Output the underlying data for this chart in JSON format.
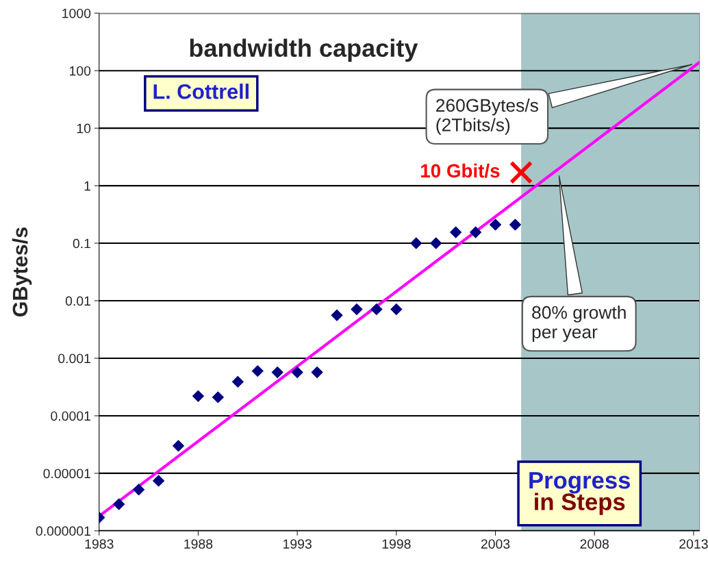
{
  "chart_data": {
    "type": "scatter",
    "title": "bandwidth capacity",
    "ylabel": "GBytes/s",
    "x": [
      1983,
      1984,
      1985,
      1986,
      1987,
      1988,
      1989,
      1990,
      1991,
      1992,
      1993,
      1994,
      1995,
      1996,
      1997,
      1998,
      1999,
      2000,
      2001,
      2002,
      2003,
      2004
    ],
    "series": [
      {
        "color": "#000080",
        "marker": "diamond",
        "values": [
          1.7e-06,
          2.9e-06,
          5.2e-06,
          7.4e-06,
          3e-05,
          0.00022,
          0.00021,
          0.00039,
          0.0006,
          0.00057,
          0.00057,
          0.00057,
          0.0056,
          0.0071,
          0.0071,
          0.0071,
          0.1,
          0.1,
          0.155,
          0.155,
          0.21,
          0.21
        ]
      },
      {
        "type": "line",
        "color": "#ff00ff",
        "x": [
          1983,
          2013.3
        ],
        "values": [
          1.8e-06,
          140
        ]
      },
      {
        "type": "scatter",
        "name": "10 Gbit/s",
        "color": "#ff0000",
        "marker": "cross",
        "x": [
          2004.3
        ],
        "values": [
          1.7
        ]
      }
    ],
    "log": "y",
    "xlim": [
      1983,
      2013.3
    ],
    "xticks": [
      1983,
      1988,
      1993,
      1998,
      2003,
      2008,
      2013
    ],
    "ylim": [
      1e-06,
      1000
    ],
    "yticks": [
      {
        "value": 1e-06,
        "label": "0.000001"
      },
      {
        "value": 1e-05,
        "label": "0.00001"
      },
      {
        "value": 0.0001,
        "label": "0.0001"
      },
      {
        "value": 0.001,
        "label": "0.001"
      },
      {
        "value": 0.01,
        "label": "0.01"
      },
      {
        "value": 0.1,
        "label": "0.1"
      },
      1,
      10,
      100,
      1000
    ],
    "grid": "y",
    "bands": [
      {
        "axis": "x",
        "from": 2004.3,
        "to": 2013.3,
        "color": "#a7c6c8"
      }
    ],
    "annotations": [
      "L. Cottrell",
      "Progress",
      "in Steps",
      {
        "text": "260GBytes/s\n(2Tbits/s)",
        "x": 2013,
        "y": 130
      },
      {
        "text": "80% growth\nper year",
        "x": 2006.2,
        "y": 1.6
      }
    ]
  }
}
